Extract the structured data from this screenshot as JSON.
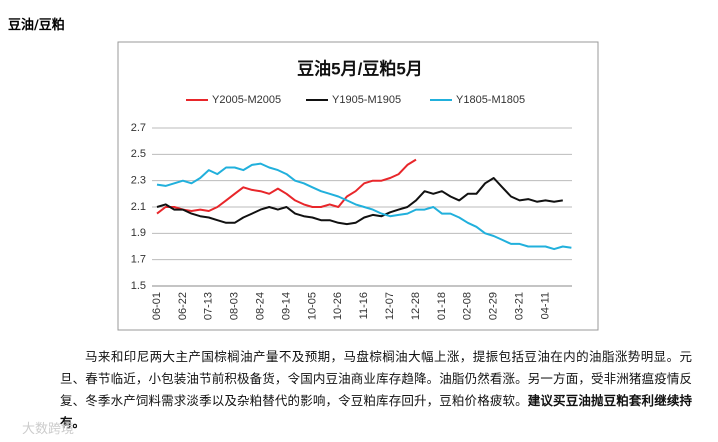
{
  "heading": "豆油/豆粕",
  "chart_data": {
    "type": "line",
    "title": "豆油5月/豆粕5月",
    "categories": [
      "06-01",
      null,
      null,
      "06-22",
      null,
      null,
      "07-13",
      null,
      null,
      "08-03",
      null,
      null,
      "08-24",
      null,
      null,
      "09-14",
      null,
      null,
      "10-05",
      null,
      null,
      "10-26",
      null,
      null,
      "11-16",
      null,
      null,
      "12-07",
      null,
      null,
      "12-28",
      null,
      null,
      "01-18",
      null,
      null,
      "02-08",
      null,
      null,
      "02-29",
      null,
      null,
      "03-21",
      null,
      null,
      "04-11",
      null,
      null,
      null
    ],
    "series": [
      {
        "name": "Y2005-M2005",
        "color": "#e8262a",
        "values": [
          2.05,
          2.1,
          2.1,
          2.08,
          2.07,
          2.08,
          2.07,
          2.1,
          2.15,
          2.2,
          2.25,
          2.23,
          2.22,
          2.2,
          2.24,
          2.2,
          2.15,
          2.12,
          2.1,
          2.1,
          2.12,
          2.1,
          2.18,
          2.22,
          2.28,
          2.3,
          2.3,
          2.32,
          2.35,
          2.42,
          2.46,
          null,
          null,
          null,
          null,
          null,
          null,
          null,
          null,
          null,
          null,
          null,
          null,
          null,
          null,
          null,
          null,
          null,
          null
        ]
      },
      {
        "name": "Y1905-M1905",
        "color": "#111111",
        "values": [
          2.1,
          2.12,
          2.08,
          2.08,
          2.05,
          2.03,
          2.02,
          2.0,
          1.98,
          1.98,
          2.02,
          2.05,
          2.08,
          2.1,
          2.08,
          2.1,
          2.05,
          2.03,
          2.02,
          2.0,
          2.0,
          1.98,
          1.97,
          1.98,
          2.02,
          2.04,
          2.03,
          2.06,
          2.08,
          2.1,
          2.15,
          2.22,
          2.2,
          2.22,
          2.18,
          2.15,
          2.2,
          2.2,
          2.28,
          2.32,
          2.25,
          2.18,
          2.15,
          2.16,
          2.14,
          2.15,
          2.14,
          2.15,
          null
        ]
      },
      {
        "name": "Y1805-M1805",
        "color": "#21b0dc",
        "values": [
          2.27,
          2.26,
          2.28,
          2.3,
          2.28,
          2.32,
          2.38,
          2.35,
          2.4,
          2.4,
          2.38,
          2.42,
          2.43,
          2.4,
          2.38,
          2.35,
          2.3,
          2.28,
          2.25,
          2.22,
          2.2,
          2.18,
          2.15,
          2.12,
          2.1,
          2.08,
          2.05,
          2.03,
          2.04,
          2.05,
          2.08,
          2.08,
          2.1,
          2.05,
          2.05,
          2.02,
          1.98,
          1.95,
          1.9,
          1.88,
          1.85,
          1.82,
          1.82,
          1.8,
          1.8,
          1.8,
          1.78,
          1.8,
          1.79
        ]
      }
    ],
    "ylim": [
      1.5,
      2.7
    ],
    "yticks": [
      1.5,
      1.7,
      1.9,
      2.1,
      2.3,
      2.5,
      2.7
    ],
    "grid": true,
    "legend": "top"
  },
  "paragraph": {
    "text": "马来和印尼两大主产国棕榈油产量不及预期，马盘棕榈油大幅上涨，提振包括豆油在内的油脂涨势明显。元旦、春节临近，小包装油节前积极备货，令国内豆油商业库存趋降。油脂仍然看涨。另一方面，受非洲猪瘟疫情反复、冬季水产饲料需求淡季以及杂粕替代的影响，令豆粕库存回升，豆粕价格疲软。",
    "bold": "建议买豆油抛豆粕套利继续持有。"
  },
  "watermark": "大数跨境"
}
